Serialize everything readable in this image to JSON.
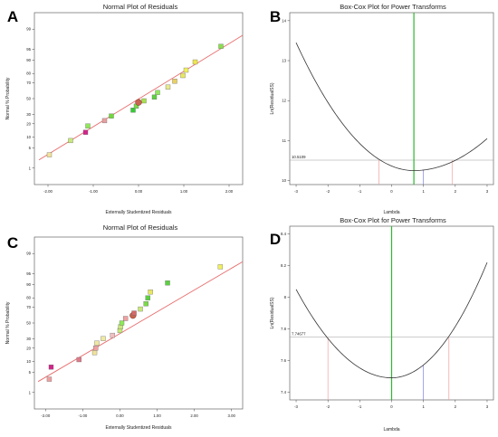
{
  "chart_data": [
    {
      "panel_label": "A",
      "type": "scatter",
      "title": "Normal Plot of Residuals",
      "xlabel": "Externally Studentized Residuals",
      "ylabel": "Normal % Probability",
      "xlim": [
        -2.3,
        2.3
      ],
      "xticks": [
        -2.0,
        -1.0,
        0.0,
        1.0,
        2.0
      ],
      "xtick_labels": [
        "-2.00",
        "-1.00",
        "0.00",
        "1.00",
        "2.00"
      ],
      "yticks": [
        1,
        5,
        10,
        20,
        30,
        50,
        70,
        80,
        90,
        95,
        99
      ],
      "ytick_labels": [
        "1",
        "5",
        "10",
        "20",
        "30",
        "50",
        "70",
        "80",
        "90",
        "95",
        "99"
      ],
      "ylim": [
        0.2,
        99.8
      ],
      "reference_line": {
        "x": [
          -2.2,
          2.3
        ],
        "y": [
          2.0,
          98.3
        ],
        "color": "#e86a6a"
      },
      "points": [
        {
          "x": -1.97,
          "y": 3.0,
          "color": "#f0e29a"
        },
        {
          "x": -1.5,
          "y": 8.0,
          "color": "#c8e87a"
        },
        {
          "x": -1.17,
          "y": 13.0,
          "color": "#d4238a"
        },
        {
          "x": -1.12,
          "y": 18.0,
          "color": "#8fe85a"
        },
        {
          "x": -0.75,
          "y": 23.0,
          "color": "#e8a0a0"
        },
        {
          "x": -0.6,
          "y": 28.0,
          "color": "#6fd83a"
        },
        {
          "x": -0.12,
          "y": 35.0,
          "color": "#33cc33"
        },
        {
          "x": -0.05,
          "y": 40.0,
          "color": "#7cd84a"
        },
        {
          "x": 0.0,
          "y": 45.0,
          "color": "#c86450",
          "big": true
        },
        {
          "x": 0.12,
          "y": 47.0,
          "color": "#a8e050"
        },
        {
          "x": 0.35,
          "y": 52.0,
          "color": "#5cd040"
        },
        {
          "x": 0.42,
          "y": 58.0,
          "color": "#8fe85a"
        },
        {
          "x": 0.65,
          "y": 65.0,
          "color": "#e8e890"
        },
        {
          "x": 0.8,
          "y": 72.0,
          "color": "#e8d060"
        },
        {
          "x": 0.98,
          "y": 78.0,
          "color": "#e8e860"
        },
        {
          "x": 1.05,
          "y": 83.0,
          "color": "#f0f060"
        },
        {
          "x": 1.25,
          "y": 89.0,
          "color": "#f0e84a"
        },
        {
          "x": 1.82,
          "y": 96.0,
          "color": "#88e04a"
        }
      ]
    },
    {
      "panel_label": "B",
      "type": "line",
      "title": "Box-Cox Plot for Power Transforms",
      "xlabel": "Lambda",
      "ylabel": "Ln(ResidualSS)",
      "xlim": [
        -3.2,
        3.2
      ],
      "xticks": [
        -3,
        -2,
        -1,
        0,
        1,
        2,
        3
      ],
      "ylim": [
        9.9,
        14.2
      ],
      "yticks": [
        10,
        11,
        12,
        13,
        14
      ],
      "curve": {
        "min_lambda": 0.7,
        "min_value": 10.25,
        "left_value": 13.45,
        "right_value": 11.05,
        "color": "#333333"
      },
      "ci_line": {
        "value": 10.5109,
        "label": "10.5109",
        "color": "#9a9a9a"
      },
      "vlines": [
        {
          "x": -0.4,
          "color": "#f0a0a0"
        },
        {
          "x": 0.7,
          "color": "#2db82d"
        },
        {
          "x": 1.0,
          "color": "#8080e0"
        },
        {
          "x": 1.9,
          "color": "#f0a0a0"
        }
      ]
    },
    {
      "panel_label": "C",
      "type": "scatter",
      "title": "Normal Plot of Residuals",
      "xlabel": "Externally Studentized Residuals",
      "ylabel": "Normal % Probability",
      "xlim": [
        -2.3,
        3.3
      ],
      "xticks": [
        -2.0,
        -1.0,
        0.0,
        1.0,
        2.0,
        3.0
      ],
      "xtick_labels": [
        "-2.00",
        "-1.00",
        "0.00",
        "1.00",
        "2.00",
        "3.00"
      ],
      "yticks": [
        1,
        5,
        10,
        20,
        30,
        50,
        70,
        80,
        90,
        95,
        99
      ],
      "ytick_labels": [
        "1",
        "5",
        "10",
        "20",
        "30",
        "50",
        "70",
        "80",
        "90",
        "95",
        "99"
      ],
      "ylim": [
        0.2,
        99.8
      ],
      "reference_line": {
        "x": [
          -2.2,
          3.3
        ],
        "y": [
          2.5,
          98.0
        ],
        "color": "#e86a6a"
      },
      "points": [
        {
          "x": -1.9,
          "y": 3.0,
          "color": "#f0a0a0"
        },
        {
          "x": -1.85,
          "y": 7.0,
          "color": "#d4238a"
        },
        {
          "x": -1.1,
          "y": 11.0,
          "color": "#e07a8a"
        },
        {
          "x": -0.68,
          "y": 16.0,
          "color": "#f0e29a"
        },
        {
          "x": -0.65,
          "y": 20.0,
          "color": "#f0a0a0"
        },
        {
          "x": -0.62,
          "y": 25.0,
          "color": "#f0e8a0"
        },
        {
          "x": -0.45,
          "y": 30.0,
          "color": "#f0e8a0"
        },
        {
          "x": -0.2,
          "y": 34.0,
          "color": "#f0c0c0"
        },
        {
          "x": 0.0,
          "y": 40.0,
          "color": "#c8e87a"
        },
        {
          "x": 0.02,
          "y": 45.0,
          "color": "#c8e87a"
        },
        {
          "x": 0.05,
          "y": 50.0,
          "color": "#8fe85a"
        },
        {
          "x": 0.15,
          "y": 56.0,
          "color": "#f0a0a0"
        },
        {
          "x": 0.35,
          "y": 60.0,
          "color": "#c86450",
          "big": true
        },
        {
          "x": 0.38,
          "y": 63.0,
          "color": "#d46a6a"
        },
        {
          "x": 0.55,
          "y": 68.0,
          "color": "#c8e87a"
        },
        {
          "x": 0.7,
          "y": 74.0,
          "color": "#7cd84a"
        },
        {
          "x": 0.75,
          "y": 80.0,
          "color": "#5cd040"
        },
        {
          "x": 0.82,
          "y": 85.0,
          "color": "#e8e860"
        },
        {
          "x": 1.28,
          "y": 91.0,
          "color": "#5cd040"
        },
        {
          "x": 2.7,
          "y": 97.0,
          "color": "#f0f060"
        }
      ]
    },
    {
      "panel_label": "D",
      "type": "line",
      "title": "Box-Cox Plot for Power Transforms",
      "xlabel": "Lambda",
      "ylabel": "Ln(ResidualSS)",
      "xlim": [
        -3.2,
        3.2
      ],
      "xticks": [
        -3,
        -2,
        -1,
        0,
        1,
        2,
        3
      ],
      "ylim": [
        7.35,
        8.45
      ],
      "yticks": [
        7.4,
        7.6,
        7.8,
        8.0,
        8.2,
        8.4
      ],
      "curve": {
        "min_lambda": 0.0,
        "min_value": 7.49,
        "left_value": 8.05,
        "right_value": 8.22,
        "color": "#333333"
      },
      "ci_line": {
        "value": 7.74677,
        "label": "7.74677",
        "color": "#9a9a9a"
      },
      "vlines": [
        {
          "x": -2.0,
          "color": "#f0a0a0"
        },
        {
          "x": 0.0,
          "color": "#2db82d"
        },
        {
          "x": 1.0,
          "color": "#8080e0"
        },
        {
          "x": 1.8,
          "color": "#f0a0a0"
        }
      ]
    }
  ]
}
